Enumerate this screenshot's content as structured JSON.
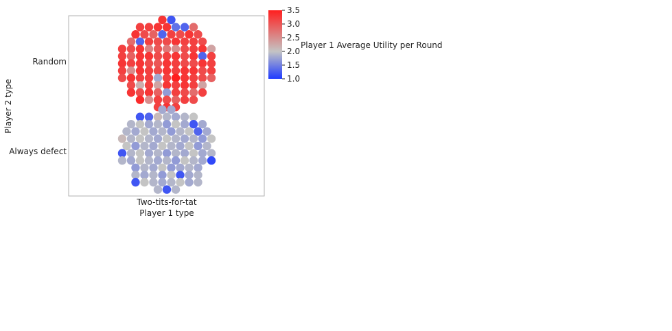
{
  "chart_data": {
    "type": "scatter",
    "subtype": "swarm",
    "xlabel": "Player 1 type",
    "ylabel": "Player 2 type",
    "x_categories": [
      "Two-tits-for-tat"
    ],
    "y_categories": [
      "Random",
      "Always defect"
    ],
    "colorbar": {
      "label": "Player 1 Average Utility per Round",
      "range": [
        1.0,
        3.5
      ],
      "ticks": [
        "3.5",
        "3.0",
        "2.5",
        "2.0",
        "1.5",
        "1.0"
      ],
      "colors": {
        "low": "#1f3bff",
        "mid": "#c4c4c4",
        "high": "#ff1f1f"
      }
    },
    "series": [
      {
        "category": "Random",
        "values": [
          [
            3.3,
            1.2
          ],
          [
            3.2,
            3.2,
            3.3,
            3.3,
            1.4,
            1.3,
            2.8
          ],
          [
            3.3,
            3.1,
            2.9,
            1.3,
            3.2,
            3.1,
            3.3,
            3.1
          ],
          [
            2.8,
            1.3,
            3.2,
            3.1,
            3.1,
            3.3,
            3.2,
            3.2,
            3.1
          ],
          [
            3.2,
            3.1,
            3.3,
            2.6,
            3.0,
            2.7,
            2.5,
            3.1,
            3.2,
            3.3,
            2.3
          ],
          [
            3.2,
            2.9,
            3.3,
            3.3,
            3.1,
            3.2,
            3.3,
            3.1,
            3.3,
            1.3,
            3.2
          ],
          [
            3.3,
            3.2,
            3.3,
            3.1,
            3.0,
            3.3,
            3.2,
            3.1,
            3.1,
            3.3,
            3.2
          ],
          [
            3.2,
            2.5,
            3.3,
            3.2,
            3.1,
            3.3,
            3.2,
            3.3,
            3.3,
            3.1,
            3.2
          ],
          [
            3.1,
            3.3,
            3.2,
            3.2,
            1.8,
            3.2,
            3.5,
            3.3,
            3.2,
            3.1,
            2.9
          ],
          [
            3.1,
            2.2,
            3.2,
            2.3,
            3.3,
            3.2,
            3.3,
            3.2,
            2.3
          ],
          [
            3.3,
            3.1,
            3.3,
            2.9,
            1.7,
            3.2,
            3.1,
            2.8,
            3.2
          ],
          [
            3.4,
            2.5,
            3.2,
            3.1,
            2.9,
            3.2,
            3.1
          ],
          [
            3.2,
            3.3,
            3.2
          ]
        ]
      },
      {
        "category": "Always defect",
        "values": [
          [
            1.8,
            1.8
          ],
          [
            1.2,
            1.3,
            2.1,
            1.9,
            1.8,
            1.9,
            2.0
          ],
          [
            1.9,
            2.0,
            1.8,
            1.9,
            1.7,
            2.0,
            1.8,
            1.2,
            1.8
          ],
          [
            1.9,
            1.8,
            2.0,
            1.8,
            1.9,
            1.7,
            1.9,
            2.0,
            1.3,
            1.8
          ],
          [
            2.1,
            1.9,
            2.0,
            1.9,
            1.8,
            2.0,
            1.9,
            1.8,
            1.9,
            1.7,
            2.0
          ],
          [
            2.0,
            1.7,
            1.9,
            1.8,
            2.0,
            1.9,
            1.8,
            2.0,
            1.7,
            1.9
          ],
          [
            1.2,
            1.9,
            2.0,
            1.8,
            1.9,
            1.7,
            1.9,
            1.8,
            2.0,
            1.8,
            1.9
          ],
          [
            1.9,
            1.8,
            2.0,
            1.9,
            1.8,
            1.9,
            1.7,
            2.0,
            1.9,
            1.8,
            1.1
          ],
          [
            1.7,
            1.9,
            1.8,
            2.0,
            1.7,
            1.8,
            1.9,
            1.8
          ],
          [
            1.9,
            1.8,
            1.9,
            1.7,
            2.0,
            1.2,
            1.8,
            1.9
          ],
          [
            1.2,
            2.0,
            1.9,
            1.8,
            1.9,
            2.0,
            1.8,
            1.9
          ],
          [
            1.9,
            1.2,
            1.9
          ]
        ]
      }
    ]
  }
}
